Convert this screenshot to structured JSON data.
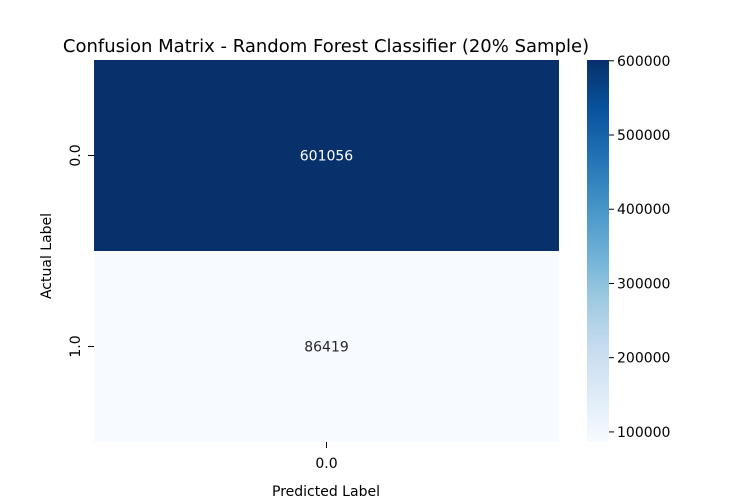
{
  "chart_data": {
    "type": "heatmap",
    "title": "Confusion Matrix - Random Forest Classifier (20% Sample)",
    "xlabel": "Predicted Label",
    "ylabel": "Actual Label",
    "x_categories": [
      "0.0"
    ],
    "y_categories": [
      "0.0",
      "1.0"
    ],
    "values": [
      [
        601056
      ],
      [
        86419
      ]
    ],
    "colormap": "Blues",
    "color_range": [
      86419,
      601056
    ],
    "colorbar_ticks": [
      "100000",
      "200000",
      "300000",
      "400000",
      "500000",
      "600000"
    ],
    "colorbar_tick_values": [
      100000,
      200000,
      300000,
      400000,
      500000,
      600000
    ],
    "annotate_cells": true,
    "colors": {
      "cell_high": "#08306b",
      "cell_low": "#f7fbff",
      "text_on_dark": "#ffffff",
      "text_on_light": "#262626"
    }
  }
}
